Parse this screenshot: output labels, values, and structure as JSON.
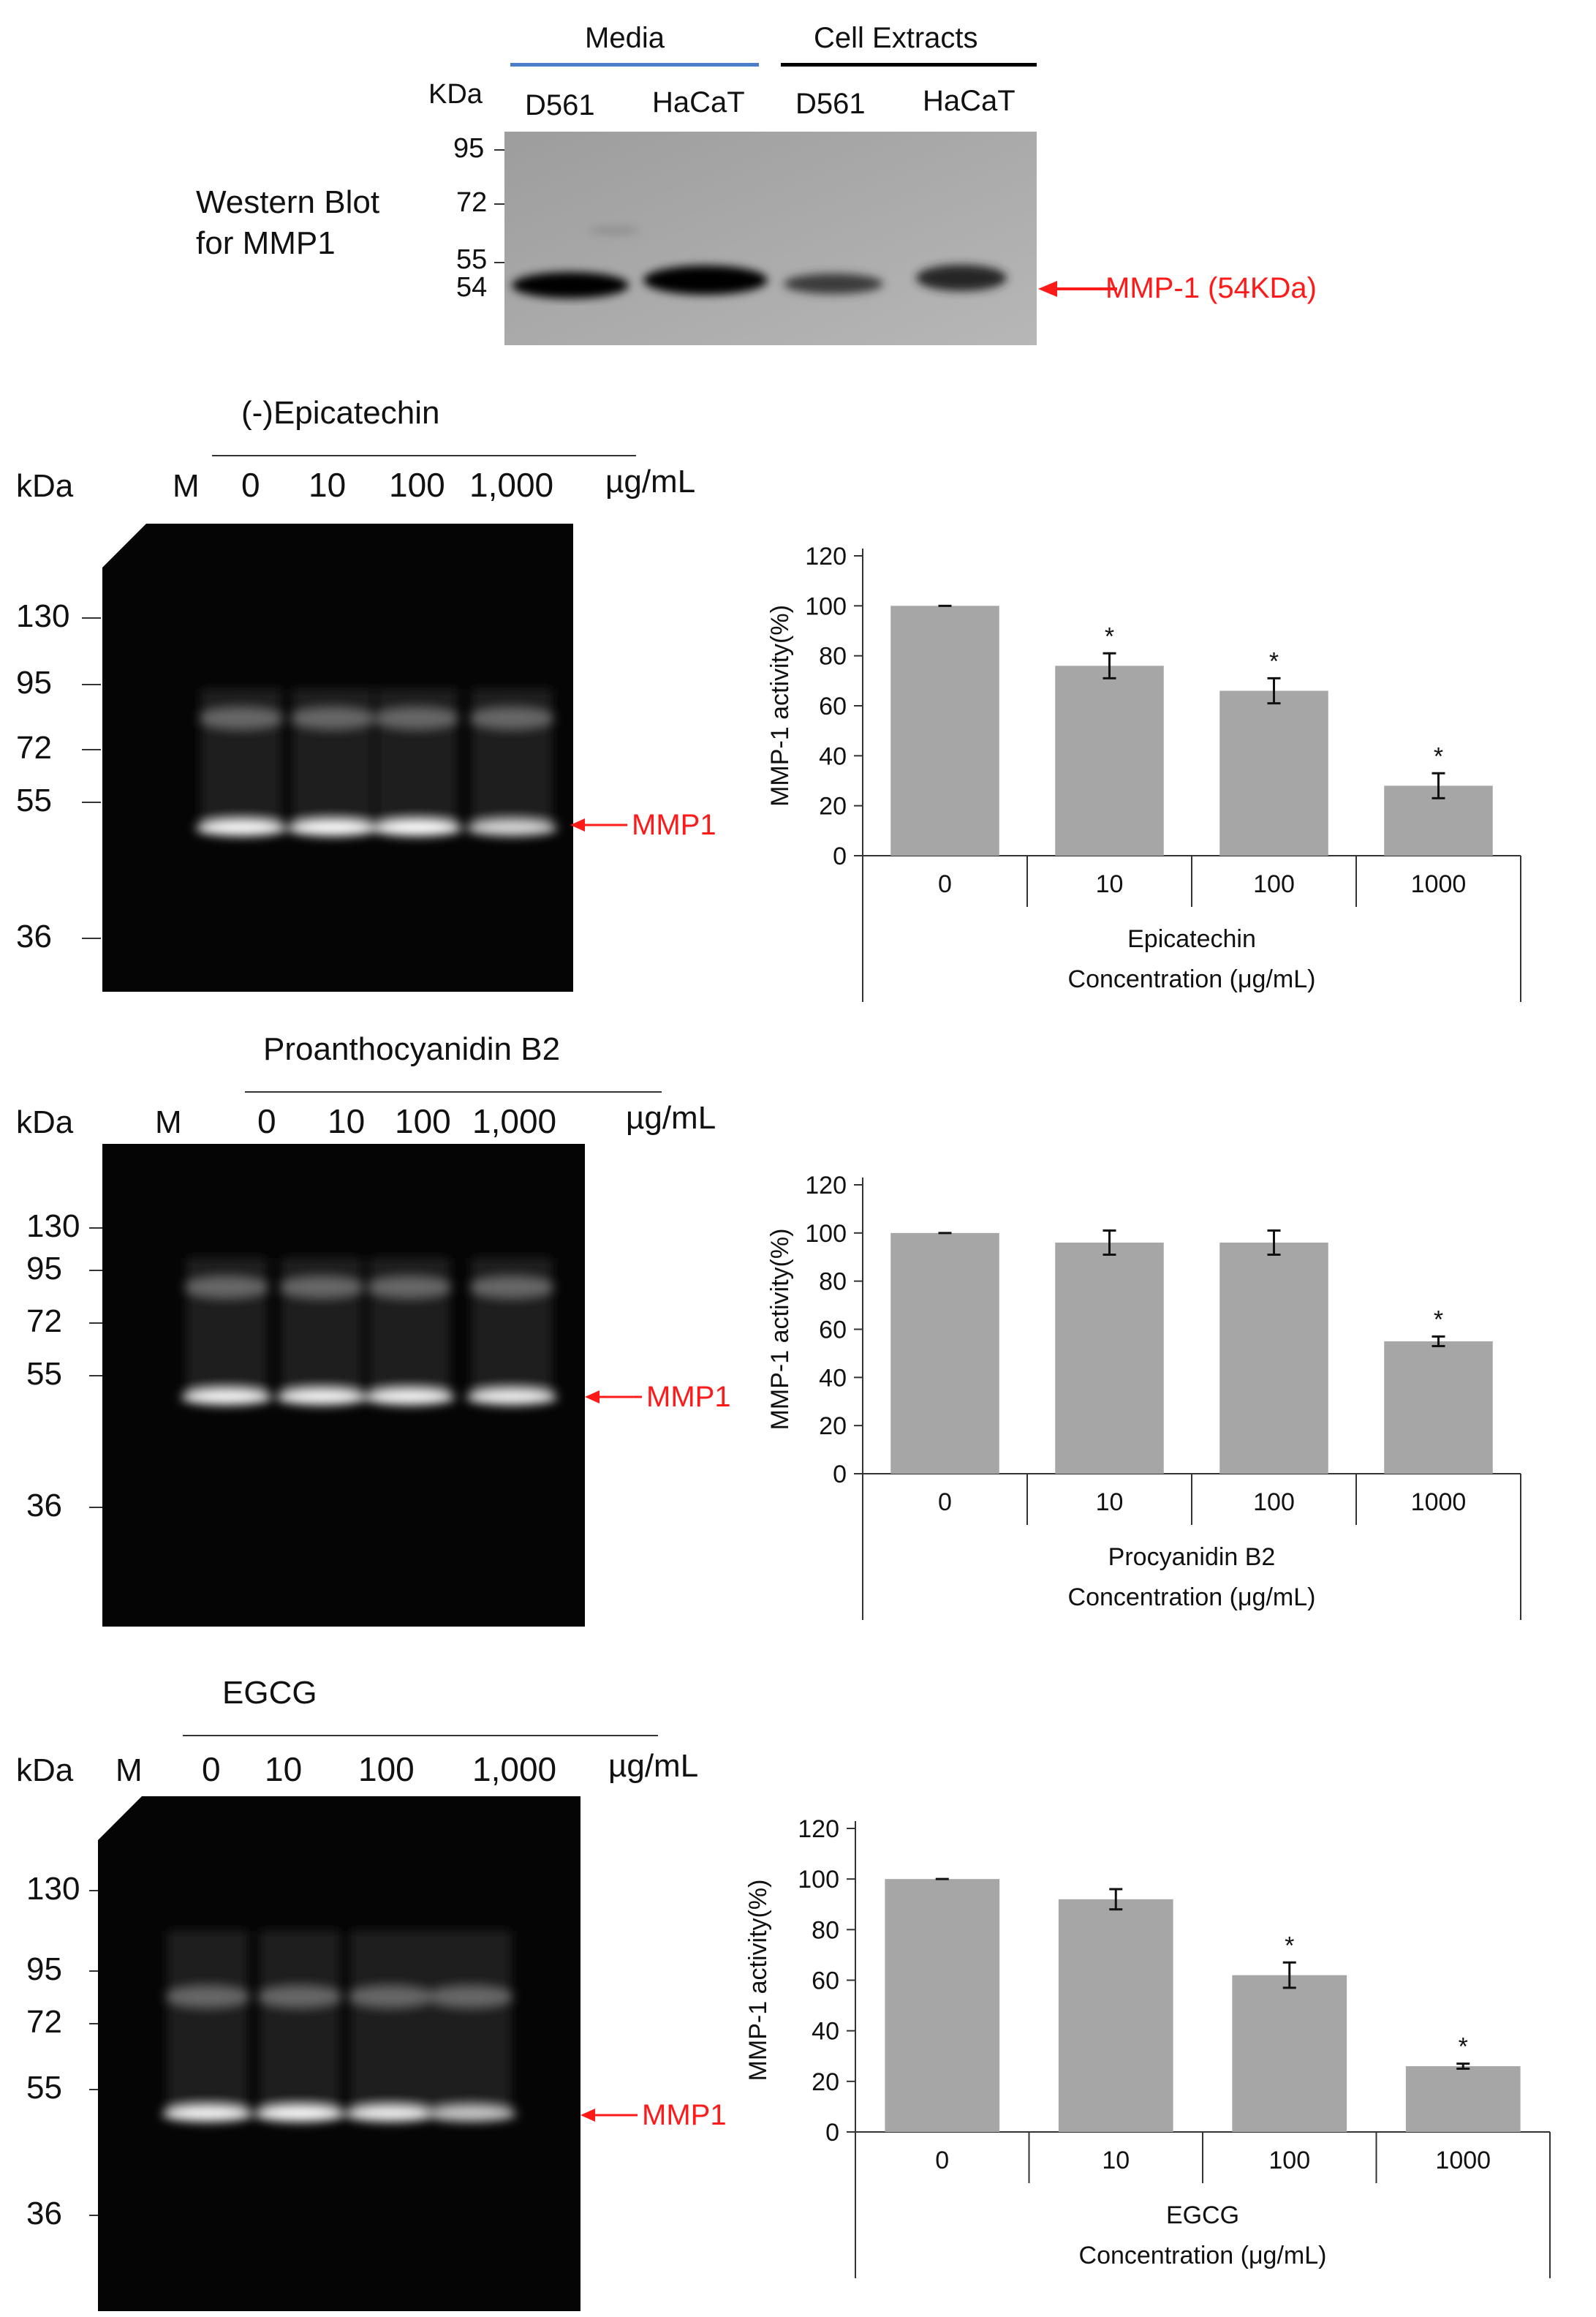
{
  "western": {
    "title_line1": "Western Blot",
    "title_line2": "for MMP1",
    "kda_label": "KDa",
    "group_media": "Media",
    "group_cell": "Cell Extracts",
    "lanes": [
      "D561",
      "HaCaT",
      "D561",
      "HaCaT"
    ],
    "markers": [
      "95",
      "72",
      "55",
      "54"
    ],
    "arrow_label": "MMP-1 (54KDa)",
    "media_line_color": "#4a7ec6",
    "cell_line_color": "#000000"
  },
  "gels": [
    {
      "treatment": "(-)Epicatechin",
      "kda_label": "kDa",
      "marker_lane": "M",
      "lanes": [
        "0",
        "10",
        "100",
        "1,000"
      ],
      "unit": "µg/mL",
      "markers": [
        "130",
        "95",
        "72",
        "55",
        "36"
      ],
      "arrow_label": "MMP1",
      "band_intensity": [
        0.95,
        0.97,
        1.0,
        0.65
      ]
    },
    {
      "treatment": "Proanthocyanidin B2",
      "kda_label": "kDa",
      "marker_lane": "M",
      "lanes": [
        "0",
        "10",
        "100",
        "1,000"
      ],
      "unit": "µg/mL",
      "markers": [
        "130",
        "95",
        "72",
        "55",
        "36"
      ],
      "arrow_label": "MMP1",
      "band_intensity": [
        0.9,
        0.9,
        0.9,
        0.85
      ]
    },
    {
      "treatment": "EGCG",
      "kda_label": "kDa",
      "marker_lane": "M",
      "lanes": [
        "0",
        "10",
        "100",
        "1,000"
      ],
      "unit": "µg/mL",
      "markers": [
        "130",
        "95",
        "72",
        "55",
        "36"
      ],
      "arrow_label": "MMP1",
      "band_intensity": [
        0.9,
        0.95,
        0.85,
        0.5
      ]
    }
  ],
  "colors": {
    "bar": "#a6a6a6",
    "arrow": "#ff1a1a"
  },
  "chart_data": [
    {
      "type": "bar",
      "categories": [
        "0",
        "10",
        "100",
        "1000"
      ],
      "values": [
        100,
        76,
        66,
        28
      ],
      "errors": [
        0,
        5,
        5,
        5
      ],
      "significant": [
        false,
        true,
        true,
        true
      ],
      "xlabel_line1": "Epicatechin",
      "xlabel_line2": "Concentration (μg/mL)",
      "ylabel": "MMP-1 activity(%)",
      "ylim": [
        0,
        120
      ],
      "yticks": [
        "0",
        "20",
        "40",
        "60",
        "80",
        "100",
        "120"
      ],
      "significance_mark": "*",
      "grid": false
    },
    {
      "type": "bar",
      "categories": [
        "0",
        "10",
        "100",
        "1000"
      ],
      "values": [
        100,
        96,
        96,
        55
      ],
      "errors": [
        0,
        5,
        5,
        2
      ],
      "significant": [
        false,
        false,
        false,
        true
      ],
      "xlabel_line1": "Procyanidin B2",
      "xlabel_line2": "Concentration (μg/mL)",
      "ylabel": "MMP-1 activity(%)",
      "ylim": [
        0,
        120
      ],
      "yticks": [
        "0",
        "20",
        "40",
        "60",
        "80",
        "100",
        "120"
      ],
      "significance_mark": "*",
      "grid": false
    },
    {
      "type": "bar",
      "categories": [
        "0",
        "10",
        "100",
        "1000"
      ],
      "values": [
        100,
        92,
        62,
        26
      ],
      "errors": [
        0,
        4,
        5,
        1
      ],
      "significant": [
        false,
        false,
        true,
        true
      ],
      "xlabel_line1": "EGCG",
      "xlabel_line2": "Concentration (μg/mL)",
      "ylabel": "MMP-1 activity(%)",
      "ylim": [
        0,
        120
      ],
      "yticks": [
        "0",
        "20",
        "40",
        "60",
        "80",
        "100",
        "120"
      ],
      "significance_mark": "*",
      "grid": false
    }
  ]
}
